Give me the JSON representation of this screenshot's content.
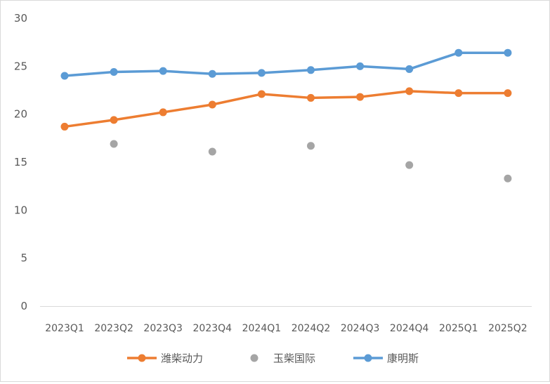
{
  "chart_data": {
    "type": "line",
    "categories": [
      "2023Q1",
      "2023Q2",
      "2023Q3",
      "2023Q4",
      "2024Q1",
      "2024Q2",
      "2024Q3",
      "2024Q4",
      "2025Q1",
      "2025Q2"
    ],
    "series": [
      {
        "name": "潍柴动力",
        "color": "#ED7D31",
        "style": "line-with-markers",
        "values": [
          18.7,
          19.4,
          20.2,
          21.0,
          22.1,
          21.7,
          21.8,
          22.4,
          22.2,
          22.2
        ]
      },
      {
        "name": "玉柴国际",
        "color": "#A5A5A5",
        "style": "markers-only",
        "values": [
          null,
          16.9,
          null,
          16.1,
          null,
          16.7,
          null,
          14.7,
          null,
          13.3
        ]
      },
      {
        "name": "康明斯",
        "color": "#5B9BD5",
        "style": "line-with-markers",
        "values": [
          24.0,
          24.4,
          24.5,
          24.2,
          24.3,
          24.6,
          25.0,
          24.7,
          26.4,
          26.4
        ]
      }
    ],
    "ylim": [
      0,
      30
    ],
    "yticks": [
      "0",
      "5",
      "10",
      "15",
      "20",
      "25",
      "30"
    ],
    "title": "",
    "xlabel": "",
    "ylabel": "",
    "grid": false,
    "legend_position": "bottom"
  }
}
